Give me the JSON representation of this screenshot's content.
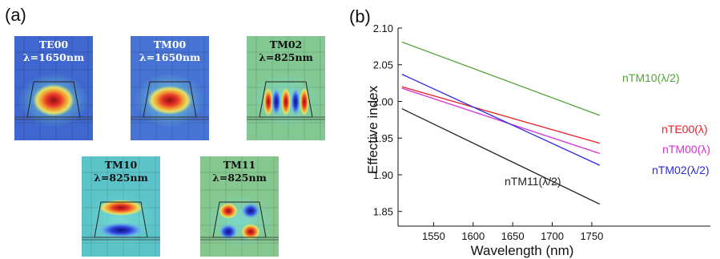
{
  "panel_a": {
    "label": "(a)",
    "modes": [
      {
        "name": "TE00",
        "wavelength": "λ=1650nm",
        "bg": "#3f67cf",
        "text_color": "#ffffff",
        "field": "te00"
      },
      {
        "name": "TM00",
        "wavelength": "λ=1650nm",
        "bg": "#4773d4",
        "text_color": "#ffffff",
        "field": "tm00"
      },
      {
        "name": "TM02",
        "wavelength": "λ=825nm",
        "bg": "#83c893",
        "text_color": "#111111",
        "field": "tm02"
      },
      {
        "name": "TM10",
        "wavelength": "λ=825nm",
        "bg": "#5cc4c8",
        "text_color": "#111111",
        "field": "tm10"
      },
      {
        "name": "TM11",
        "wavelength": "λ=825nm",
        "bg": "#86c78f",
        "text_color": "#111111",
        "field": "tm11"
      }
    ]
  },
  "panel_b": {
    "label": "(b)"
  },
  "chart_data": {
    "type": "line",
    "xlabel": "Wavelength (nm)",
    "ylabel": "Effective index",
    "xlim": [
      1505,
      1900
    ],
    "ylim": [
      1.83,
      2.1
    ],
    "xticks": [
      1550,
      1600,
      1650,
      1700,
      1750
    ],
    "yticks": [
      1.85,
      1.9,
      1.95,
      2.0,
      2.05,
      2.1
    ],
    "yticklabels": [
      "1.85",
      "1.90",
      "1.95",
      "2.00",
      "2.05",
      "2.10"
    ],
    "grid": false,
    "series": [
      {
        "name": "nTM10(λ/2)",
        "color": "#55a33a",
        "x": [
          1510,
          1760
        ],
        "y": [
          2.081,
          1.981
        ]
      },
      {
        "name": "nTE00(λ)",
        "color": "#e8202a",
        "x": [
          1510,
          1760
        ],
        "y": [
          2.02,
          1.943
        ]
      },
      {
        "name": "nTM00(λ)",
        "color": "#d62fd6",
        "x": [
          1510,
          1760
        ],
        "y": [
          2.018,
          1.929
        ]
      },
      {
        "name": "nTM02(λ/2)",
        "color": "#2a2ae0",
        "x": [
          1510,
          1760
        ],
        "y": [
          2.037,
          1.913
        ]
      },
      {
        "name": "nTM11(λ/2)",
        "color": "#222222",
        "x": [
          1510,
          1760
        ],
        "y": [
          1.99,
          1.86
        ]
      }
    ]
  }
}
